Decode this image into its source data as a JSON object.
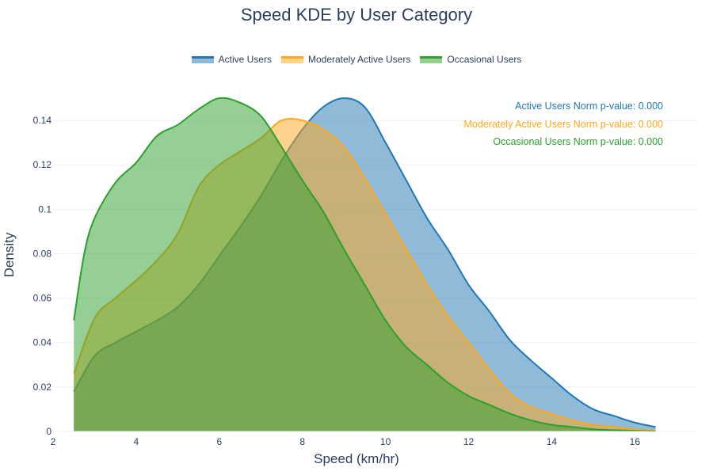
{
  "title": "Speed KDE by User Category",
  "colors": {
    "active": "#1f77b4",
    "moderate": "#ffa71a",
    "occasional": "#2ca02c",
    "grid": "#ebf0f8",
    "axis_text": "#2a3f5f"
  },
  "chart_data": {
    "type": "area",
    "title": "Speed KDE by User Category",
    "xlabel": "Speed (km/hr)",
    "ylabel": "Density",
    "xlim": [
      2,
      17.5
    ],
    "ylim": [
      0,
      0.155
    ],
    "xticks": [
      2,
      4,
      6,
      8,
      10,
      12,
      14,
      16
    ],
    "yticks": [
      0,
      0.02,
      0.04,
      0.06,
      0.08,
      0.1,
      0.12,
      0.14
    ],
    "ytick_labels": [
      "0",
      "0.02",
      "0.04",
      "0.06",
      "0.08",
      "0.1",
      "0.12",
      "0.14"
    ],
    "legend_position": "top-center",
    "grid": true,
    "series": [
      {
        "name": "Active Users",
        "color": "#1f77b4",
        "x": [
          2.5,
          3.0,
          3.5,
          4.0,
          4.5,
          5.0,
          5.5,
          6.0,
          6.5,
          7.0,
          7.5,
          8.0,
          8.5,
          9.0,
          9.5,
          10.0,
          10.5,
          11.0,
          11.5,
          12.0,
          12.5,
          13.0,
          13.5,
          14.0,
          14.5,
          15.0,
          15.5,
          16.0,
          16.5
        ],
        "y": [
          0.018,
          0.034,
          0.04,
          0.045,
          0.05,
          0.056,
          0.066,
          0.079,
          0.092,
          0.106,
          0.122,
          0.136,
          0.146,
          0.15,
          0.146,
          0.13,
          0.113,
          0.096,
          0.082,
          0.066,
          0.054,
          0.041,
          0.032,
          0.024,
          0.016,
          0.01,
          0.007,
          0.004,
          0.002
        ]
      },
      {
        "name": "Moderately Active Users",
        "color": "#ffa71a",
        "x": [
          2.5,
          3.0,
          3.5,
          4.0,
          4.5,
          5.0,
          5.5,
          6.0,
          6.5,
          7.0,
          7.5,
          8.0,
          8.5,
          9.0,
          9.5,
          10.0,
          10.5,
          11.0,
          11.5,
          12.0,
          12.5,
          13.0,
          13.5,
          14.0,
          14.5,
          15.0,
          15.5,
          16.0,
          16.5
        ],
        "y": [
          0.026,
          0.051,
          0.06,
          0.068,
          0.077,
          0.089,
          0.11,
          0.12,
          0.126,
          0.132,
          0.14,
          0.14,
          0.136,
          0.128,
          0.114,
          0.098,
          0.082,
          0.066,
          0.052,
          0.04,
          0.028,
          0.017,
          0.011,
          0.008,
          0.005,
          0.003,
          0.002,
          0.001,
          0.0005
        ]
      },
      {
        "name": "Occasional Users",
        "color": "#2ca02c",
        "x": [
          2.5,
          2.75,
          3.0,
          3.5,
          4.0,
          4.5,
          5.0,
          5.5,
          6.0,
          6.5,
          7.0,
          7.5,
          8.0,
          8.5,
          9.0,
          9.5,
          10.0,
          10.5,
          11.0,
          11.5,
          12.0,
          12.5,
          13.0,
          13.5,
          14.0,
          14.5,
          15.0,
          15.5,
          16.0,
          16.5
        ],
        "y": [
          0.05,
          0.08,
          0.096,
          0.112,
          0.121,
          0.133,
          0.138,
          0.145,
          0.15,
          0.148,
          0.142,
          0.128,
          0.113,
          0.099,
          0.082,
          0.066,
          0.05,
          0.038,
          0.03,
          0.022,
          0.016,
          0.012,
          0.008,
          0.005,
          0.003,
          0.002,
          0.001,
          0.0006,
          0.0003,
          0.0001
        ]
      }
    ],
    "annotations": [
      {
        "text": "Active Users Norm p-value: 0.000",
        "color": "#1f77b4"
      },
      {
        "text": "Moderately Active Users Norm p-value: 0.000",
        "color": "#ffa71a"
      },
      {
        "text": "Occasional Users Norm p-value: 0.000",
        "color": "#2ca02c"
      }
    ]
  }
}
